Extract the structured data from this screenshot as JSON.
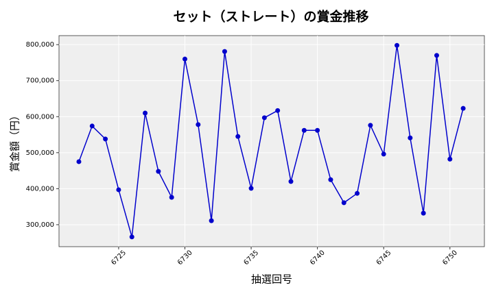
{
  "chart_data": {
    "type": "line",
    "title": "セット（ストレート）の賞金推移",
    "xlabel": "抽選回号",
    "ylabel": "賞金額（円）",
    "x": [
      6722,
      6723,
      6724,
      6725,
      6726,
      6727,
      6728,
      6729,
      6730,
      6731,
      6732,
      6733,
      6734,
      6735,
      6736,
      6737,
      6738,
      6739,
      6740,
      6741,
      6742,
      6743,
      6744,
      6745,
      6746,
      6747,
      6748,
      6749,
      6750,
      6751
    ],
    "series": [
      {
        "color": "#0000cc",
        "values": [
          475000,
          574000,
          538000,
          397000,
          266000,
          610000,
          448000,
          376000,
          760000,
          578000,
          311000,
          781000,
          545000,
          401000,
          597000,
          617000,
          420000,
          562000,
          562000,
          425000,
          361000,
          387000,
          576000,
          496000,
          798000,
          541000,
          332000,
          770000,
          482000,
          623000
        ]
      }
    ],
    "xlim": [
      6720.5,
      6752.6
    ],
    "xticks": [
      6725,
      6730,
      6735,
      6740,
      6745,
      6750
    ],
    "ylim": [
      239000,
      825000
    ],
    "yticks": [
      {
        "value": 300000,
        "label": "300,000"
      },
      {
        "value": 400000,
        "label": "400,000"
      },
      {
        "value": 500000,
        "label": "500,000"
      },
      {
        "value": 600000,
        "label": "600,000"
      },
      {
        "value": 700000,
        "label": "700,000"
      },
      {
        "value": 800000,
        "label": "800,000"
      }
    ],
    "grid": true
  }
}
